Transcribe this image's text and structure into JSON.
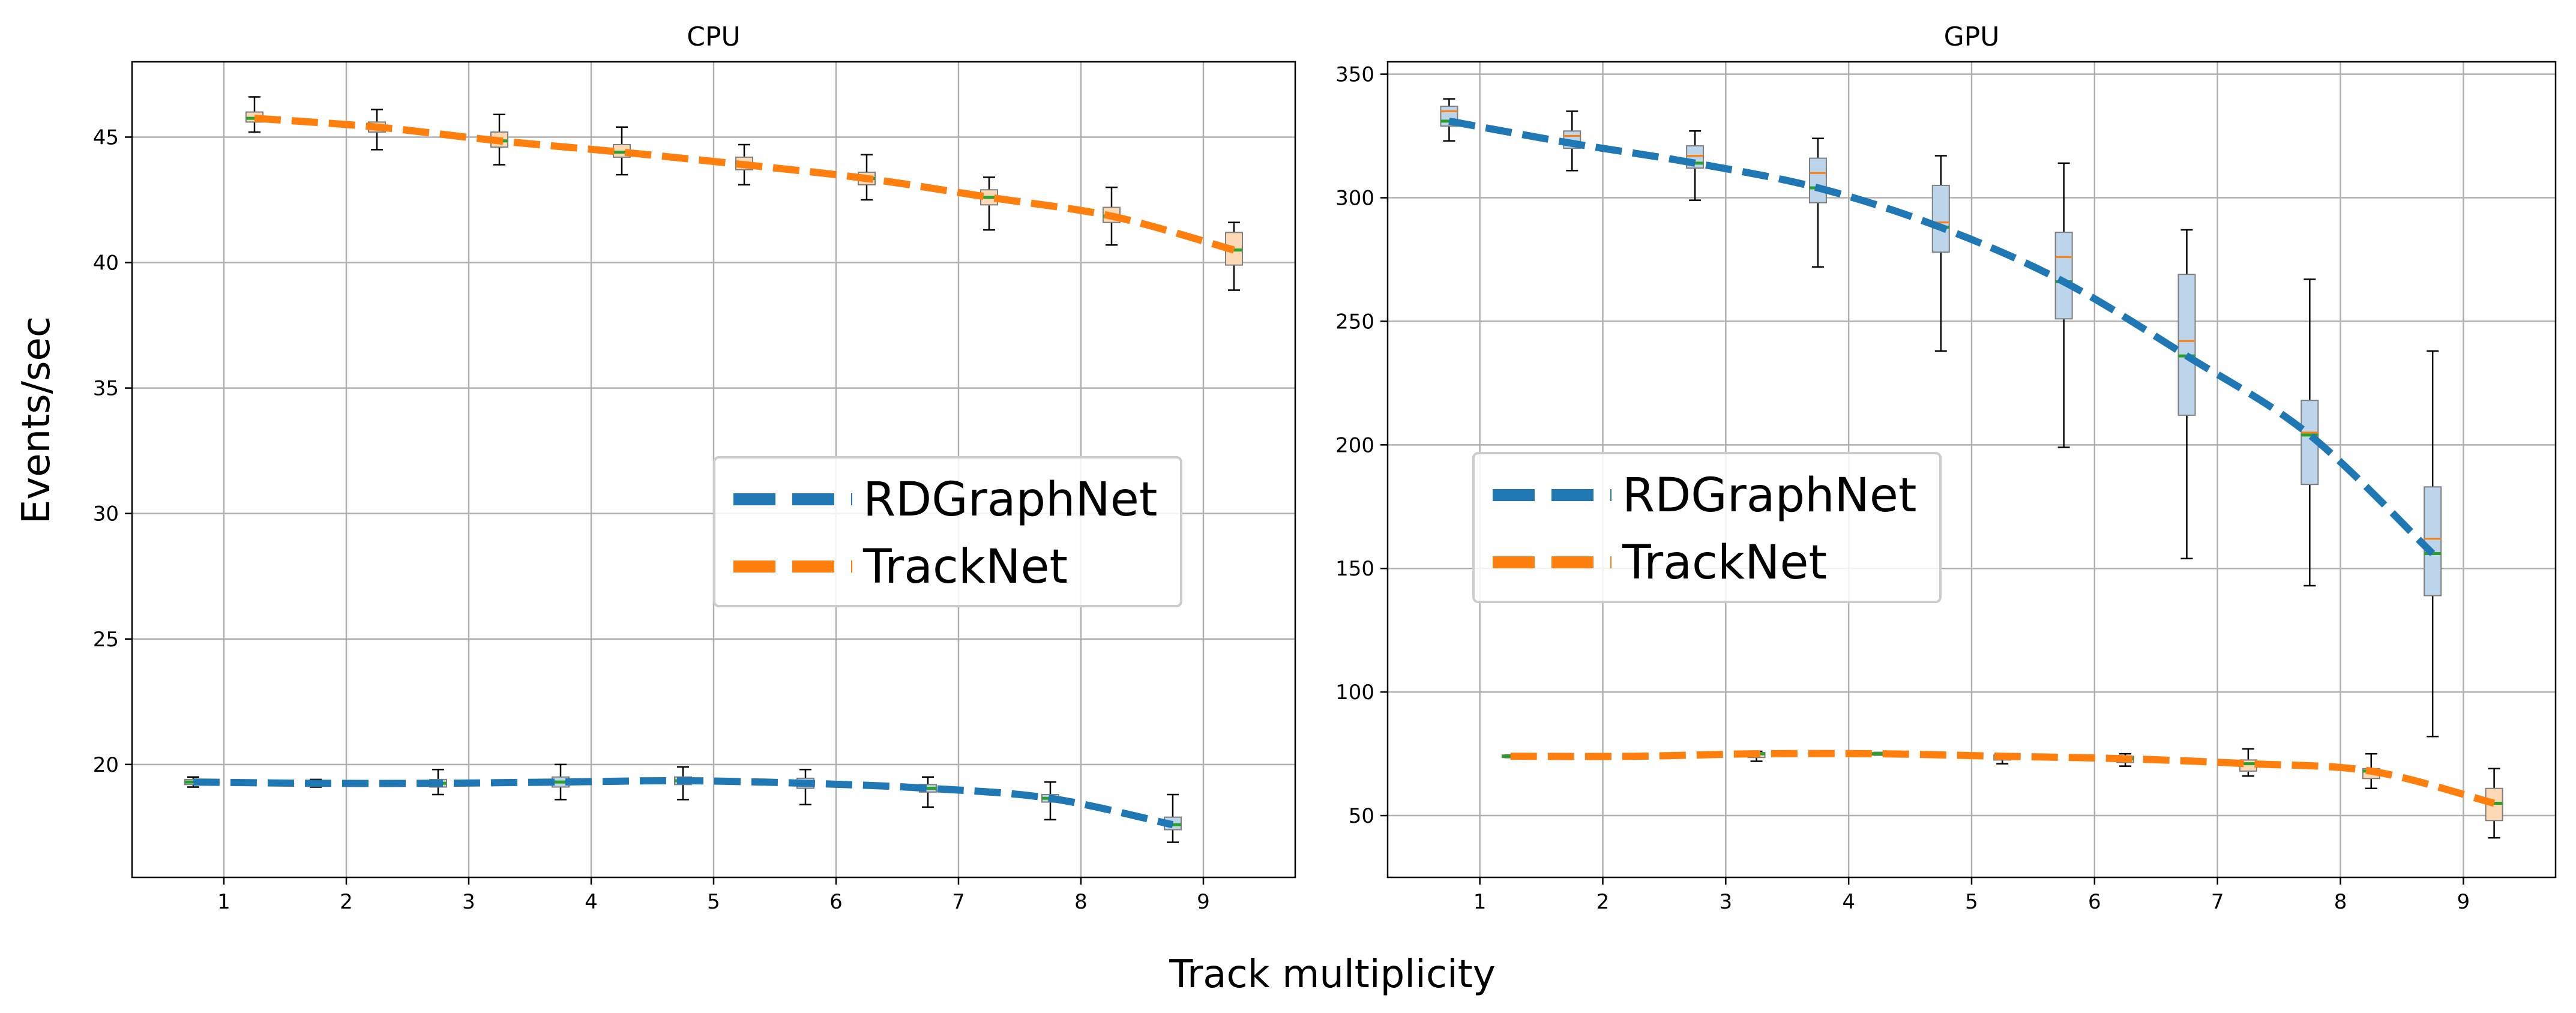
{
  "figure": {
    "ylabel": "Events/sec",
    "xlabel": "Track multiplicity"
  },
  "chart_data": [
    {
      "type": "line",
      "title": "CPU",
      "xlim": [
        0.25,
        9.75
      ],
      "ylim": [
        15.5,
        48
      ],
      "xticks": [
        1,
        2,
        3,
        4,
        5,
        6,
        7,
        8,
        9
      ],
      "yticks": [
        20,
        25,
        30,
        35,
        40,
        45
      ],
      "grid": true,
      "legend_position": "center-right",
      "series": [
        {
          "name": "RDGraphNet",
          "color": "#1f77b4",
          "x": [
            0.75,
            1.75,
            2.75,
            3.75,
            4.75,
            5.75,
            6.75,
            7.75,
            8.75
          ],
          "median": [
            19.3,
            19.25,
            19.25,
            19.3,
            19.35,
            19.25,
            19.05,
            18.65,
            17.6
          ],
          "q1": [
            19.2,
            19.15,
            19.1,
            19.1,
            19.2,
            19.05,
            18.9,
            18.5,
            17.4
          ],
          "q3": [
            19.4,
            19.35,
            19.4,
            19.5,
            19.5,
            19.45,
            19.2,
            18.8,
            17.9
          ],
          "whisker_low": [
            19.1,
            19.1,
            18.8,
            18.6,
            18.6,
            18.4,
            18.3,
            17.8,
            16.9
          ],
          "whisker_high": [
            19.5,
            19.4,
            19.8,
            20.0,
            19.9,
            19.8,
            19.5,
            19.3,
            18.8
          ]
        },
        {
          "name": "TrackNet",
          "color": "#ff7f0e",
          "x": [
            1.25,
            2.25,
            3.25,
            4.25,
            5.25,
            6.25,
            7.25,
            8.25,
            9.25
          ],
          "median": [
            45.75,
            45.4,
            44.85,
            44.4,
            43.9,
            43.35,
            42.6,
            41.85,
            40.5
          ],
          "q1": [
            45.6,
            45.2,
            44.6,
            44.2,
            43.7,
            43.1,
            42.3,
            41.6,
            39.9
          ],
          "q3": [
            46.0,
            45.6,
            45.2,
            44.7,
            44.2,
            43.6,
            42.9,
            42.2,
            41.2
          ],
          "whisker_low": [
            45.2,
            44.5,
            43.9,
            43.5,
            43.1,
            42.5,
            41.3,
            40.7,
            38.9
          ],
          "whisker_high": [
            46.6,
            46.1,
            45.9,
            45.4,
            44.7,
            44.3,
            43.4,
            43.0,
            41.6
          ]
        }
      ]
    },
    {
      "type": "line",
      "title": "GPU",
      "xlim": [
        0.25,
        9.75
      ],
      "ylim": [
        25,
        355
      ],
      "xticks": [
        1,
        2,
        3,
        4,
        5,
        6,
        7,
        8,
        9
      ],
      "yticks": [
        50,
        100,
        150,
        200,
        250,
        300,
        350
      ],
      "grid": true,
      "legend_position": "center-left",
      "series": [
        {
          "name": "RDGraphNet",
          "color": "#1f77b4",
          "x": [
            0.75,
            1.75,
            2.75,
            3.75,
            4.75,
            5.75,
            6.75,
            7.75,
            8.75
          ],
          "median": [
            331,
            322,
            314,
            304,
            288,
            266,
            236,
            204,
            156
          ],
          "box_median": [
            335,
            325,
            317,
            310,
            290,
            276,
            242,
            205,
            162
          ],
          "q1": [
            329,
            320,
            312,
            298,
            278,
            251,
            212,
            184,
            139
          ],
          "q3": [
            337,
            327,
            321,
            316,
            305,
            286,
            269,
            218,
            183
          ],
          "whisker_low": [
            323,
            311,
            299,
            272,
            238,
            199,
            154,
            143,
            82
          ],
          "whisker_high": [
            340,
            335,
            327,
            324,
            317,
            314,
            287,
            267,
            238
          ]
        },
        {
          "name": "TrackNet",
          "color": "#ff7f0e",
          "x": [
            1.25,
            2.25,
            3.25,
            4.25,
            5.25,
            6.25,
            7.25,
            8.25,
            9.25
          ],
          "median": [
            74,
            74,
            75,
            75,
            74,
            73,
            71,
            68,
            55
          ],
          "q1": [
            73.5,
            73.5,
            73.5,
            74.5,
            72.5,
            71.5,
            68,
            65,
            48
          ],
          "q3": [
            74.5,
            74.5,
            75.5,
            75.5,
            74.5,
            74,
            72.5,
            69,
            61
          ],
          "whisker_low": [
            73.5,
            73.5,
            72,
            74.5,
            71,
            70,
            66,
            61,
            41
          ],
          "whisker_high": [
            74.5,
            74.5,
            76,
            75.5,
            75,
            75,
            77,
            75,
            69
          ]
        }
      ]
    }
  ]
}
